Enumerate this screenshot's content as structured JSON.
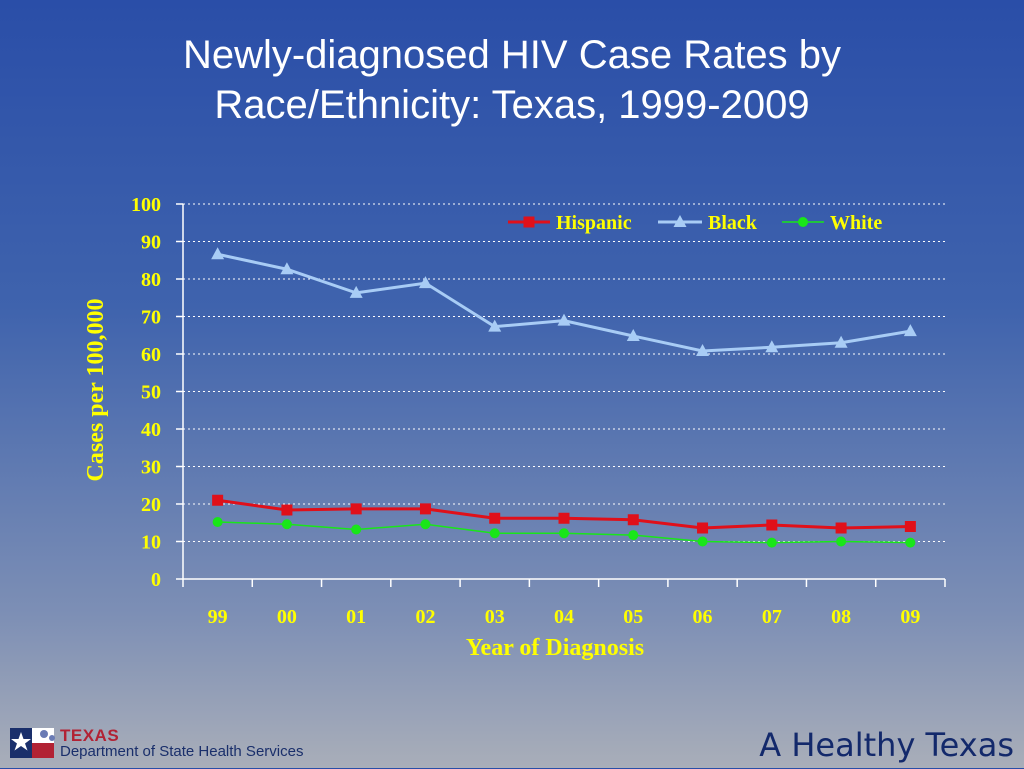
{
  "slide": {
    "title_line1": "Newly-diagnosed HIV Case Rates by",
    "title_line2": "Race/Ethnicity: Texas, 1999-2009"
  },
  "footer": {
    "logo_text": "TEXAS",
    "logo_subtext": "Department of State Health Services",
    "tagline": "A Healthy Texas"
  },
  "colors": {
    "axis_text": "#ffff00",
    "hispanic": "#e0101a",
    "black": "#a8ccf5",
    "white": "#19e619"
  },
  "chart_data": {
    "type": "line",
    "xlabel": "Year of Diagnosis",
    "ylabel": "Cases per 100,000",
    "ylim": [
      0,
      100
    ],
    "yticks": [
      "0",
      "10",
      "20",
      "30",
      "40",
      "50",
      "60",
      "70",
      "80",
      "90",
      "100"
    ],
    "categories": [
      "99",
      "00",
      "01",
      "02",
      "03",
      "04",
      "05",
      "06",
      "07",
      "08",
      "09"
    ],
    "grid": true,
    "legend_position": "top-right",
    "series": [
      {
        "name": "Hispanic",
        "marker": "square",
        "values": [
          21.0,
          18.4,
          18.7,
          18.7,
          16.2,
          16.2,
          15.8,
          13.6,
          14.4,
          13.6,
          14.0
        ]
      },
      {
        "name": "Black",
        "marker": "triangle",
        "values": [
          86.6,
          82.6,
          76.3,
          78.9,
          67.3,
          68.9,
          64.8,
          60.8,
          61.8,
          63.0,
          66.1
        ]
      },
      {
        "name": "White",
        "marker": "circle",
        "values": [
          15.2,
          14.6,
          13.2,
          14.6,
          12.2,
          12.2,
          11.7,
          10.0,
          9.7,
          10.0,
          9.7
        ]
      }
    ]
  }
}
